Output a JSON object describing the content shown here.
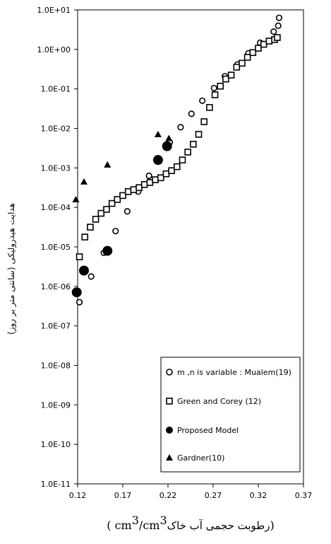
{
  "chart_data": {
    "type": "scatter",
    "xlabel_prefix": "رطوبت حجمی آب خاک",
    "xlabel_units": "( cm",
    "xlabel_units_mid": "/cm",
    "xlabel_units_end": ")",
    "xlabel_sup": "3",
    "ylabel": "هدایت هیدرولیکی (سانتی متر بر روز)",
    "x_ticks": [
      "0.12",
      "0.17",
      "0.22",
      "0.27",
      "0.32",
      "0.37"
    ],
    "x_tick_values": [
      0.12,
      0.17,
      0.22,
      0.27,
      0.32,
      0.37
    ],
    "y_ticks": [
      "1.0E+01",
      "1.0E+00",
      "1.0E-01",
      "1.0E-02",
      "1.0E-03",
      "1.0E-04",
      "1.0E-05",
      "1.0E-06",
      "1.0E-07",
      "1.0E-08",
      "1.0E-09",
      "1.0E-10",
      "1.0E-11"
    ],
    "y_tick_exponents": [
      1,
      0,
      -1,
      -2,
      -3,
      -4,
      -5,
      -6,
      -7,
      -8,
      -9,
      -10,
      -11
    ],
    "xlim": [
      0.12,
      0.37
    ],
    "ylim_log10": [
      -11,
      1
    ],
    "y_scale": "log",
    "grid": false,
    "legend_placement": "bottom-right",
    "series": [
      {
        "name": "m ,n is variable : Mualem(19)",
        "marker": "open-circle",
        "points": [
          [
            0.122,
            -6.4
          ],
          [
            0.135,
            -5.75
          ],
          [
            0.149,
            -5.15
          ],
          [
            0.162,
            -4.6
          ],
          [
            0.175,
            -4.1
          ],
          [
            0.187,
            -3.6
          ],
          [
            0.199,
            -3.2
          ],
          [
            0.222,
            -2.35
          ],
          [
            0.234,
            -1.97
          ],
          [
            0.246,
            -1.63
          ],
          [
            0.258,
            -1.3
          ],
          [
            0.271,
            -0.98
          ],
          [
            0.283,
            -0.68
          ],
          [
            0.297,
            -0.38
          ],
          [
            0.309,
            -0.1
          ],
          [
            0.322,
            0.17
          ],
          [
            0.337,
            0.45
          ],
          [
            0.342,
            0.6
          ],
          [
            0.343,
            0.8
          ]
        ]
      },
      {
        "name": "Green and Corey (12)",
        "marker": "open-square",
        "points": [
          [
            0.122,
            -5.25
          ],
          [
            0.128,
            -4.75
          ],
          [
            0.134,
            -4.5
          ],
          [
            0.14,
            -4.3
          ],
          [
            0.146,
            -4.15
          ],
          [
            0.152,
            -4.05
          ],
          [
            0.158,
            -3.9
          ],
          [
            0.164,
            -3.8
          ],
          [
            0.17,
            -3.7
          ],
          [
            0.176,
            -3.6
          ],
          [
            0.182,
            -3.55
          ],
          [
            0.188,
            -3.5
          ],
          [
            0.194,
            -3.42
          ],
          [
            0.2,
            -3.37
          ],
          [
            0.206,
            -3.3
          ],
          [
            0.212,
            -3.25
          ],
          [
            0.218,
            -3.15
          ],
          [
            0.224,
            -3.07
          ],
          [
            0.23,
            -2.97
          ],
          [
            0.236,
            -2.8
          ],
          [
            0.242,
            -2.6
          ],
          [
            0.248,
            -2.4
          ],
          [
            0.254,
            -2.15
          ],
          [
            0.26,
            -1.83
          ],
          [
            0.266,
            -1.47
          ],
          [
            0.272,
            -1.15
          ],
          [
            0.278,
            -0.93
          ],
          [
            0.284,
            -0.75
          ],
          [
            0.29,
            -0.65
          ],
          [
            0.296,
            -0.45
          ],
          [
            0.302,
            -0.35
          ],
          [
            0.308,
            -0.2
          ],
          [
            0.314,
            -0.08
          ],
          [
            0.32,
            0.03
          ],
          [
            0.326,
            0.13
          ],
          [
            0.332,
            0.21
          ],
          [
            0.338,
            0.25
          ],
          [
            0.341,
            0.3
          ]
        ]
      },
      {
        "name": "Proposed Model",
        "marker": "filled-circle",
        "points": [
          [
            0.119,
            -6.15
          ],
          [
            0.127,
            -5.6
          ],
          [
            0.153,
            -5.1
          ],
          [
            0.209,
            -2.8
          ],
          [
            0.219,
            -2.45
          ]
        ]
      },
      {
        "name": "Gardner(10)",
        "marker": "filled-triangle",
        "points": [
          [
            0.118,
            -3.8
          ],
          [
            0.127,
            -3.35
          ],
          [
            0.153,
            -2.92
          ],
          [
            0.209,
            -2.15
          ],
          [
            0.221,
            -2.25
          ]
        ]
      }
    ]
  }
}
